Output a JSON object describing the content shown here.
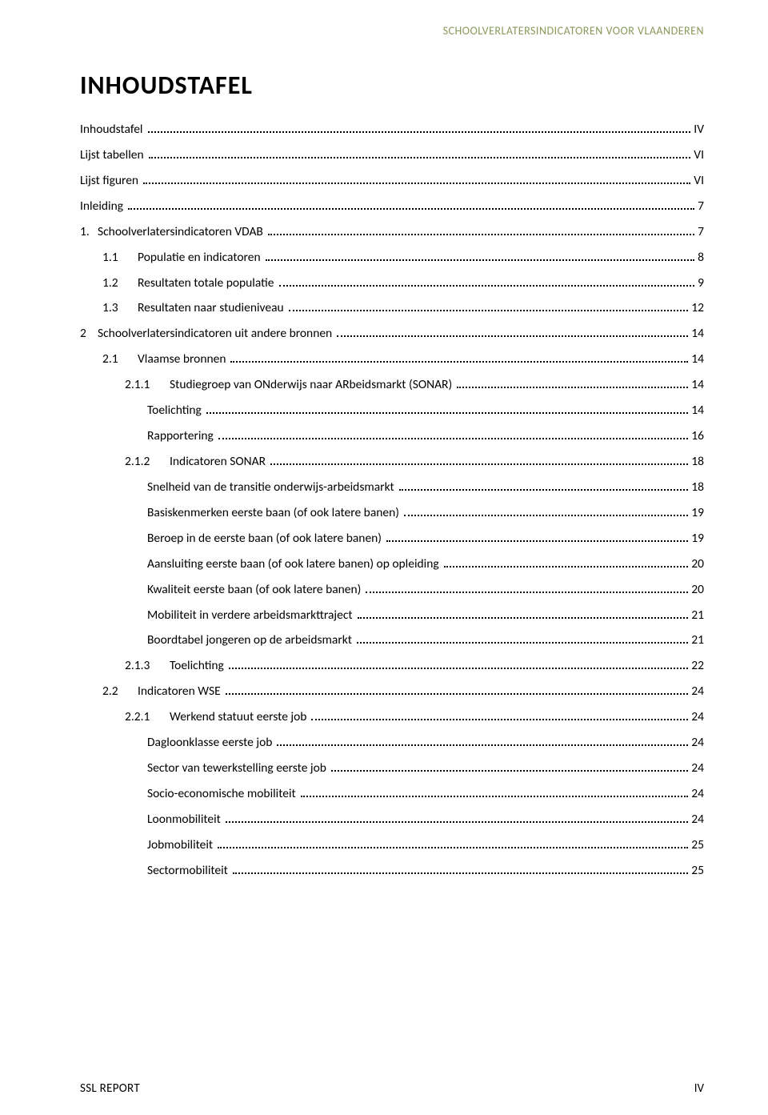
{
  "header": {
    "running_title": "SCHOOLVERLATERSINDICATOREN VOOR VLAANDEREN"
  },
  "title": "INHOUDSTAFEL",
  "toc": [
    {
      "indent": 0,
      "num": "",
      "label": "Inhoudstafel",
      "page": "IV"
    },
    {
      "indent": 0,
      "num": "",
      "label": "Lijst tabellen",
      "page": "VI"
    },
    {
      "indent": 0,
      "num": "",
      "label": "Lijst figuren",
      "page": "VI"
    },
    {
      "indent": 0,
      "num": "",
      "label": "Inleiding",
      "page": "7"
    },
    {
      "indent": 0,
      "num": "1.",
      "label": "Schoolverlatersindicatoren VDAB",
      "page": "7"
    },
    {
      "indent": 1,
      "num": "1.1",
      "label": "Populatie en indicatoren",
      "page": "8"
    },
    {
      "indent": 1,
      "num": "1.2",
      "label": "Resultaten totale populatie",
      "page": "9"
    },
    {
      "indent": 1,
      "num": "1.3",
      "label": "Resultaten naar studieniveau",
      "page": "12"
    },
    {
      "indent": 0,
      "num": "2",
      "label": "Schoolverlatersindicatoren uit andere bronnen",
      "page": "14"
    },
    {
      "indent": 1,
      "num": "2.1",
      "label": "Vlaamse bronnen",
      "page": "14"
    },
    {
      "indent": 2,
      "num": "2.1.1",
      "label": "Studiegroep van ONderwijs naar ARbeidsmarkt (SONAR)",
      "page": "14"
    },
    {
      "indent": 3,
      "num": "",
      "label": "Toelichting",
      "page": "14"
    },
    {
      "indent": 3,
      "num": "",
      "label": "Rapportering",
      "page": "16"
    },
    {
      "indent": 2,
      "num": "2.1.2",
      "label": "Indicatoren SONAR",
      "page": "18"
    },
    {
      "indent": 3,
      "num": "",
      "label": "Snelheid van de transitie onderwijs-arbeidsmarkt",
      "page": "18"
    },
    {
      "indent": 3,
      "num": "",
      "label": "Basiskenmerken eerste baan (of ook latere banen)",
      "page": "19"
    },
    {
      "indent": 3,
      "num": "",
      "label": "Beroep in de eerste baan (of ook latere banen)",
      "page": "19"
    },
    {
      "indent": 3,
      "num": "",
      "label": "Aansluiting eerste baan (of ook latere banen) op opleiding",
      "page": "20"
    },
    {
      "indent": 3,
      "num": "",
      "label": "Kwaliteit eerste baan (of ook latere banen)",
      "page": "20"
    },
    {
      "indent": 3,
      "num": "",
      "label": "Mobiliteit in verdere arbeidsmarkttraject",
      "page": "21"
    },
    {
      "indent": 3,
      "num": "",
      "label": "Boordtabel jongeren op de arbeidsmarkt",
      "page": "21"
    },
    {
      "indent": 2,
      "num": "2.1.3",
      "label": "Toelichting",
      "page": "22"
    },
    {
      "indent": 1,
      "num": "2.2",
      "label": "Indicatoren WSE",
      "page": "24"
    },
    {
      "indent": 2,
      "num": "2.2.1",
      "label": "Werkend statuut eerste job",
      "page": "24"
    },
    {
      "indent": 3,
      "num": "",
      "label": "Dagloonklasse eerste job",
      "page": "24"
    },
    {
      "indent": 3,
      "num": "",
      "label": "Sector van tewerkstelling eerste job",
      "page": "24"
    },
    {
      "indent": 3,
      "num": "",
      "label": "Socio-economische mobiliteit",
      "page": "24"
    },
    {
      "indent": 3,
      "num": "",
      "label": "Loonmobiliteit",
      "page": "24"
    },
    {
      "indent": 3,
      "num": "",
      "label": "Jobmobiliteit",
      "page": "25"
    },
    {
      "indent": 3,
      "num": "",
      "label": "Sectormobiliteit",
      "page": "25"
    }
  ],
  "footer": {
    "left": "SSL REPORT",
    "right": "IV"
  },
  "colors": {
    "running_head": "#8a9a5b",
    "text": "#000000",
    "background": "#ffffff"
  }
}
